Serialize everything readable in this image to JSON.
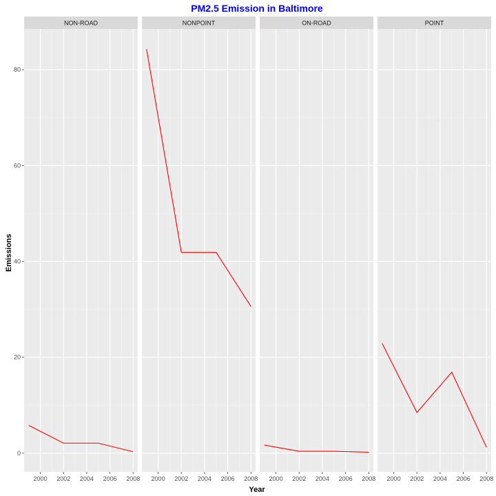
{
  "chart_data": {
    "type": "line",
    "title": "PM2.5 Emission in Baltimore",
    "title_color": "#0000FF",
    "xlabel": "Year",
    "ylabel": "Emissions",
    "x_ticks": [
      2000,
      2002,
      2004,
      2006,
      2008
    ],
    "y_ticks": [
      0,
      20,
      40,
      60,
      80
    ],
    "xlim": [
      1998.6,
      2008.4
    ],
    "ylim": [
      -3.9,
      88.5
    ],
    "panel_background": "#EBEBEB",
    "strip_background": "#D9D9D9",
    "grid": true,
    "line_color": "#FF0000",
    "panels": [
      {
        "name": "NON-ROAD",
        "x": [
          1999,
          2002,
          2005,
          2008
        ],
        "y": [
          5.8,
          2.1,
          2.1,
          0.3
        ]
      },
      {
        "name": "NONPOINT",
        "x": [
          1999,
          2002,
          2005,
          2008
        ],
        "y": [
          84.3,
          41.9,
          41.9,
          30.6
        ]
      },
      {
        "name": "ON-ROAD",
        "x": [
          1999,
          2002,
          2005,
          2008
        ],
        "y": [
          1.7,
          0.4,
          0.4,
          0.2
        ]
      },
      {
        "name": "POINT",
        "x": [
          1999,
          2002,
          2005,
          2008
        ],
        "y": [
          22.9,
          8.5,
          16.9,
          1.2
        ]
      }
    ]
  }
}
